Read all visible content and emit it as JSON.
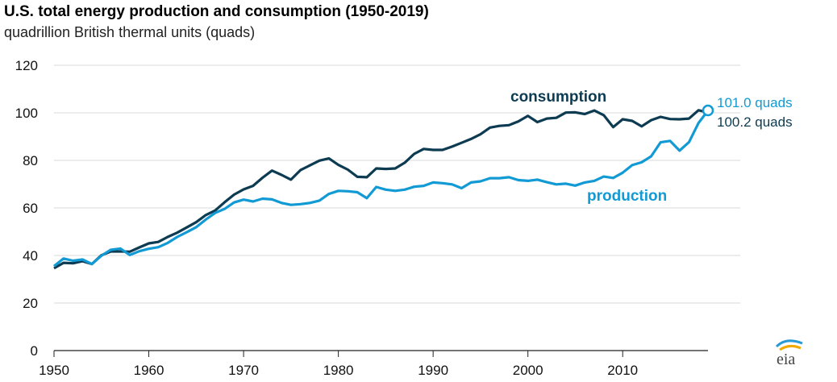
{
  "chart_data": {
    "type": "line",
    "title": "U.S. total energy production and consumption (1950-2019)",
    "subtitle": "quadrillion British thermal units (quads)",
    "xlabel": "",
    "ylabel": "",
    "xlim": [
      1950,
      2019
    ],
    "ylim": [
      0,
      120
    ],
    "yticks": [
      0,
      20,
      40,
      60,
      80,
      100,
      120
    ],
    "xticks": [
      1950,
      1960,
      1970,
      1980,
      1990,
      2000,
      2010
    ],
    "x": [
      1950,
      1951,
      1952,
      1953,
      1954,
      1955,
      1956,
      1957,
      1958,
      1959,
      1960,
      1961,
      1962,
      1963,
      1964,
      1965,
      1966,
      1967,
      1968,
      1969,
      1970,
      1971,
      1972,
      1973,
      1974,
      1975,
      1976,
      1977,
      1978,
      1979,
      1980,
      1981,
      1982,
      1983,
      1984,
      1985,
      1986,
      1987,
      1988,
      1989,
      1990,
      1991,
      1992,
      1993,
      1994,
      1995,
      1996,
      1997,
      1998,
      1999,
      2000,
      2001,
      2002,
      2003,
      2004,
      2005,
      2006,
      2007,
      2008,
      2009,
      2010,
      2011,
      2012,
      2013,
      2014,
      2015,
      2016,
      2017,
      2018,
      2019
    ],
    "series": [
      {
        "name": "consumption",
        "color": "#0d3b52",
        "values": [
          34.6,
          36.9,
          36.7,
          37.6,
          36.4,
          40.1,
          41.7,
          41.7,
          41.6,
          43.4,
          45.1,
          45.7,
          47.8,
          49.6,
          51.8,
          54.0,
          57.0,
          58.9,
          62.4,
          65.6,
          67.8,
          69.3,
          72.7,
          75.7,
          73.9,
          71.9,
          75.9,
          77.9,
          79.9,
          80.8,
          78.1,
          76.1,
          73.1,
          72.9,
          76.6,
          76.4,
          76.6,
          79.0,
          82.7,
          84.8,
          84.4,
          84.4,
          85.8,
          87.4,
          89.0,
          91.0,
          93.8,
          94.5,
          94.8,
          96.4,
          98.7,
          96.1,
          97.6,
          97.9,
          100.1,
          100.2,
          99.5,
          101.0,
          99.0,
          94.0,
          97.3,
          96.6,
          94.3,
          96.9,
          98.3,
          97.4,
          97.3,
          97.6,
          101.1,
          100.2
        ],
        "end_label": "100.2 quads"
      },
      {
        "name": "production",
        "color": "#129ad4",
        "values": [
          35.5,
          38.7,
          37.8,
          38.3,
          36.4,
          39.9,
          42.4,
          42.9,
          40.2,
          41.8,
          42.8,
          43.5,
          45.3,
          47.8,
          49.8,
          51.9,
          55.1,
          57.9,
          59.6,
          62.3,
          63.5,
          62.7,
          63.9,
          63.6,
          62.1,
          61.3,
          61.6,
          62.1,
          63.1,
          65.9,
          67.2,
          67.0,
          66.6,
          64.1,
          68.8,
          67.7,
          67.2,
          67.7,
          68.9,
          69.3,
          70.7,
          70.4,
          69.9,
          68.3,
          70.7,
          71.2,
          72.5,
          72.5,
          72.9,
          71.7,
          71.4,
          71.9,
          70.8,
          69.9,
          70.2,
          69.4,
          70.7,
          71.4,
          73.2,
          72.6,
          74.8,
          78.0,
          79.2,
          81.7,
          87.6,
          88.2,
          84.1,
          87.7,
          95.7,
          101.0
        ],
        "end_label": "101.0 quads"
      }
    ],
    "annotations": {
      "consumption_label": "consumption",
      "production_label": "production"
    }
  },
  "logo_text": "eia"
}
